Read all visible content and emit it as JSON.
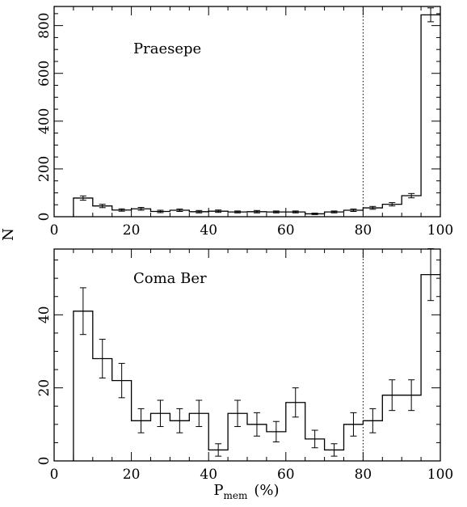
{
  "chart_data": [
    {
      "type": "histogram",
      "panel_label": "Praesepe",
      "ylabel": "N",
      "xlim": [
        0,
        100
      ],
      "ylim": [
        0,
        880
      ],
      "x_ticks": [
        0,
        20,
        40,
        60,
        80,
        100
      ],
      "y_ticks": [
        0,
        200,
        400,
        600,
        800
      ],
      "threshold_x": 80,
      "bin_edges": [
        5,
        10,
        15,
        20,
        25,
        30,
        35,
        40,
        45,
        50,
        55,
        60,
        65,
        70,
        75,
        80,
        85,
        90,
        95,
        100
      ],
      "values": [
        78,
        45,
        28,
        33,
        22,
        27,
        21,
        23,
        20,
        21,
        20,
        20,
        12,
        20,
        27,
        37,
        52,
        88,
        845
      ],
      "errors": [
        9,
        7,
        5,
        6,
        5,
        5,
        5,
        5,
        4,
        5,
        4,
        4,
        3,
        4,
        5,
        6,
        7,
        9,
        29
      ]
    },
    {
      "type": "histogram",
      "panel_label": "Coma Ber",
      "xlabel": "P",
      "xlabel_sub": "mem",
      "xlabel_unit": "(%)",
      "xlim": [
        0,
        100
      ],
      "ylim": [
        0,
        58
      ],
      "x_ticks": [
        0,
        20,
        40,
        60,
        80,
        100
      ],
      "y_ticks": [
        0,
        20,
        40
      ],
      "threshold_x": 80,
      "bin_edges": [
        5,
        10,
        15,
        20,
        25,
        30,
        35,
        40,
        45,
        50,
        55,
        60,
        65,
        70,
        75,
        80,
        85,
        90,
        95,
        100
      ],
      "values": [
        41,
        28,
        22,
        11,
        13,
        11,
        13,
        3,
        13,
        10,
        8,
        16,
        6,
        3,
        10,
        11,
        18,
        18,
        51
      ],
      "errors": [
        6.4,
        5.3,
        4.7,
        3.3,
        3.6,
        3.3,
        3.6,
        1.7,
        3.6,
        3.2,
        2.8,
        4.0,
        2.4,
        1.7,
        3.2,
        3.3,
        4.2,
        4.2,
        7.1
      ]
    }
  ]
}
